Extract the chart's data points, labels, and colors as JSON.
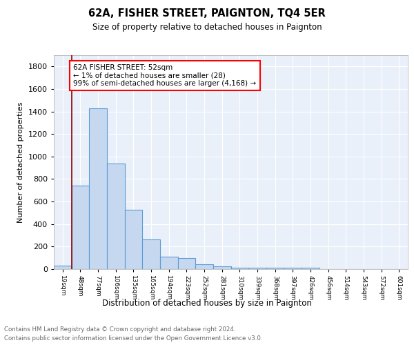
{
  "title": "62A, FISHER STREET, PAIGNTON, TQ4 5ER",
  "subtitle": "Size of property relative to detached houses in Paignton",
  "xlabel": "Distribution of detached houses by size in Paignton",
  "ylabel": "Number of detached properties",
  "bar_color": "#c5d8f0",
  "bar_edge_color": "#5b9bd5",
  "background_color": "#eaf0f9",
  "grid_color": "white",
  "bins": [
    "19sqm",
    "48sqm",
    "77sqm",
    "106sqm",
    "135sqm",
    "165sqm",
    "194sqm",
    "223sqm",
    "252sqm",
    "281sqm",
    "310sqm",
    "339sqm",
    "368sqm",
    "397sqm",
    "426sqm",
    "456sqm",
    "514sqm",
    "543sqm",
    "572sqm",
    "601sqm"
  ],
  "values": [
    28,
    740,
    1430,
    935,
    530,
    265,
    110,
    100,
    45,
    25,
    15,
    15,
    15,
    15,
    15,
    0,
    0,
    0,
    0,
    0
  ],
  "annotation_text_line1": "62A FISHER STREET: 52sqm",
  "annotation_text_line2": "← 1% of detached houses are smaller (28)",
  "annotation_text_line3": "99% of semi-detached houses are larger (4,168) →",
  "marker_line_color": "#8b0000",
  "ylim": [
    0,
    1900
  ],
  "yticks": [
    0,
    200,
    400,
    600,
    800,
    1000,
    1200,
    1400,
    1600,
    1800
  ],
  "footer_line1": "Contains HM Land Registry data © Crown copyright and database right 2024.",
  "footer_line2": "Contains public sector information licensed under the Open Government Licence v3.0."
}
